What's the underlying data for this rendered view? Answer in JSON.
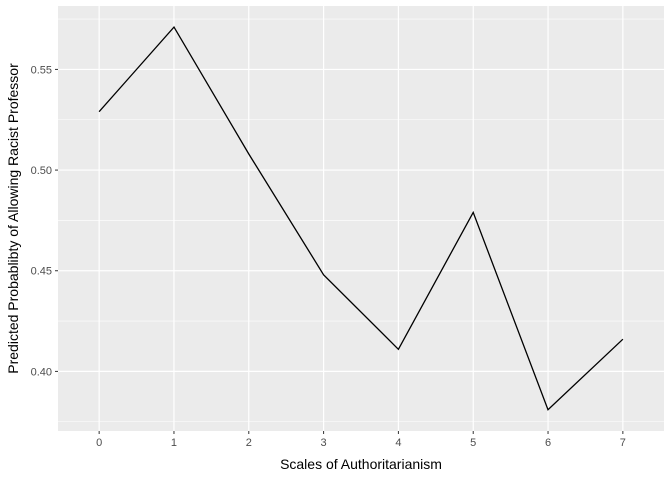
{
  "chart_data": {
    "type": "line",
    "title": "",
    "xlabel": "Scales of Authoritarianism",
    "ylabel": "Predicted Probablibty of Allowing Racist Professor",
    "x": [
      0,
      1,
      2,
      3,
      4,
      5,
      6,
      7
    ],
    "y": [
      0.529,
      0.571,
      0.508,
      0.448,
      0.411,
      0.479,
      0.381,
      0.416
    ],
    "xlim": [
      -0.55,
      7.55
    ],
    "ylim": [
      0.3704,
      0.5815
    ],
    "x_ticks": [
      0,
      1,
      2,
      3,
      4,
      5,
      6,
      7
    ],
    "y_ticks": [
      0.4,
      0.45,
      0.5,
      0.55
    ],
    "y_tick_labels": [
      "0.40",
      "0.45",
      "0.50",
      "0.55"
    ],
    "grid": true,
    "colors": {
      "panel_background": "#ebebeb",
      "grid_major": "#ffffff",
      "line": "#000000"
    }
  }
}
